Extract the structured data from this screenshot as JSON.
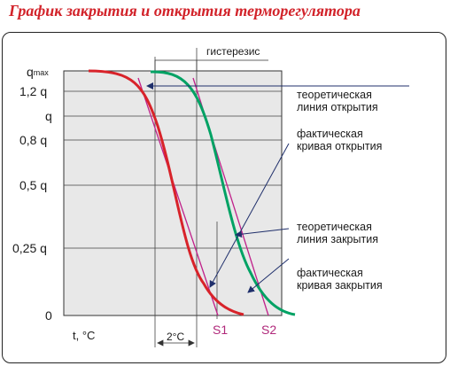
{
  "title": "График закрытия и открытия терморегулятора",
  "y_tick_labels": [
    {
      "text": "q",
      "sub": "max"
    },
    {
      "text": "1,2 q"
    },
    {
      "text": "q"
    },
    {
      "text": "0,8 q"
    },
    {
      "text": "0,5 q"
    },
    {
      "text": "0,25 q"
    },
    {
      "text": "0"
    }
  ],
  "x_axis_label": "t, °C",
  "hysteresis_label": "гистерезис",
  "delta_label": "2°C",
  "point_labels": {
    "s1": "S1",
    "s2": "S2"
  },
  "annotations": {
    "theoretical_opening": [
      "теоретическая",
      "линия открытия"
    ],
    "actual_opening": [
      "фактическая",
      "кривая открытия"
    ],
    "theoretical_closing": [
      "теоретическая",
      "линия закрытия"
    ],
    "actual_closing": [
      "фактическая",
      "кривая закрытия"
    ]
  },
  "colors": {
    "title": "#d2232a",
    "closing_curve": "#d8232a",
    "opening_curve": "#00a264",
    "theoretical_lines": "#c0208a",
    "pointer_lines": "#1f2f6b",
    "plot_background": "#e8e8e8"
  }
}
